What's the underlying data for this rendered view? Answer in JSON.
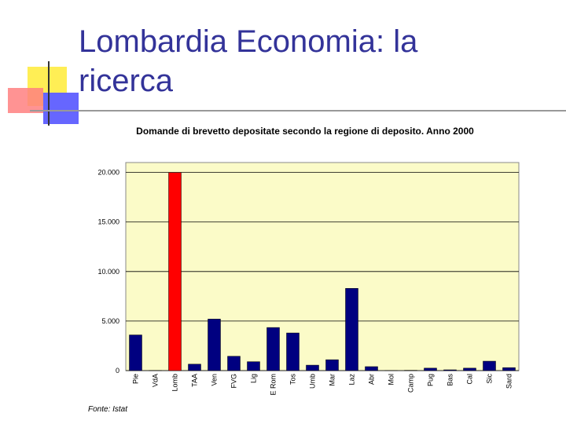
{
  "slide_title": "Lombardia Economia: la ricerca",
  "chart_data": {
    "type": "bar",
    "title": "Domande di brevetto depositate secondo la regione di deposito. Anno 2000",
    "source": "Fonte: Istat",
    "categories": [
      "Pie",
      "VdA",
      "Lomb",
      "TAA",
      "Ven",
      "FVG",
      "Lig",
      "E Rom",
      "Tos",
      "Umb",
      "Mar",
      "Laz",
      "Abr",
      "Mol",
      "Camp",
      "Pug",
      "Bas",
      "Cal",
      "Sic",
      "Sard"
    ],
    "values": [
      3600,
      20,
      20000,
      650,
      5200,
      1450,
      900,
      4350,
      3800,
      550,
      1100,
      8300,
      400,
      10,
      30,
      250,
      80,
      250,
      950,
      300
    ],
    "colors": [
      "#000080",
      "#000080",
      "#ff0000",
      "#000080",
      "#000080",
      "#000080",
      "#000080",
      "#000080",
      "#000080",
      "#000080",
      "#000080",
      "#000080",
      "#000080",
      "#000080",
      "#000080",
      "#000080",
      "#000080",
      "#000080",
      "#000080",
      "#000080"
    ],
    "ylim": [
      0,
      21000
    ],
    "yticks": [
      0,
      {
        "value": 5000,
        "label": "5.000"
      },
      {
        "value": 10000,
        "label": "10.000"
      },
      {
        "value": 15000,
        "label": "15.000"
      },
      {
        "value": 20000,
        "label": "20.000"
      }
    ],
    "grid": true
  }
}
